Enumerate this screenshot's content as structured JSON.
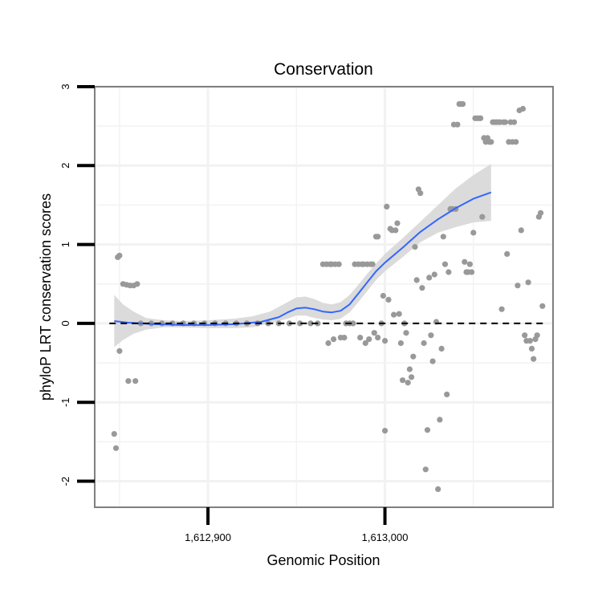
{
  "chart_data": {
    "type": "scatter",
    "title": "Conservation",
    "xlabel": "Genomic Position",
    "ylabel": "phyloP LRT conservation scores",
    "xlim": [
      1612836,
      1613095
    ],
    "ylim": [
      -2.33,
      3.0
    ],
    "x_ticks": [
      {
        "value": 1612900,
        "label": "1,612,900"
      },
      {
        "value": 1613000,
        "label": "1,613,000"
      }
    ],
    "y_ticks": [
      {
        "value": -2,
        "label": "-2"
      },
      {
        "value": -1,
        "label": "-1"
      },
      {
        "value": 0,
        "label": "0"
      },
      {
        "value": 1,
        "label": "1"
      },
      {
        "value": 2,
        "label": "2"
      },
      {
        "value": 3,
        "label": "3"
      }
    ],
    "x_minor_grid": [
      1612850,
      1612950,
      1613050
    ],
    "y_minor_grid": [
      -1.5,
      -0.5,
      0.5,
      1.5,
      2.5
    ],
    "reference_line": {
      "y": 0,
      "style": "dashed"
    },
    "colors": {
      "points": "#999999",
      "smooth": "#3366FF",
      "ribbon": "#D9D9D9",
      "frame": "#7F7F7F",
      "grid": "#F2F2F2"
    },
    "series": [
      {
        "name": "phyloP scores",
        "type": "scatter",
        "points": [
          [
            1612847,
            -1.4
          ],
          [
            1612848,
            -1.58
          ],
          [
            1612849,
            0.84
          ],
          [
            1612850,
            0.86
          ],
          [
            1612850,
            -0.35
          ],
          [
            1612852,
            0.5
          ],
          [
            1612854,
            0.49
          ],
          [
            1612855,
            -0.73
          ],
          [
            1612856,
            0.48
          ],
          [
            1612858,
            0.48
          ],
          [
            1612859,
            -0.73
          ],
          [
            1612860,
            0.5
          ],
          [
            1612862,
            0
          ],
          [
            1612868,
            0
          ],
          [
            1612874,
            0
          ],
          [
            1612880,
            0
          ],
          [
            1612886,
            0
          ],
          [
            1612892,
            0
          ],
          [
            1612898,
            0
          ],
          [
            1612904,
            0
          ],
          [
            1612910,
            0
          ],
          [
            1612916,
            0
          ],
          [
            1612922,
            0
          ],
          [
            1612928,
            0
          ],
          [
            1612934,
            0
          ],
          [
            1612940,
            0
          ],
          [
            1612946,
            0
          ],
          [
            1612952,
            0
          ],
          [
            1612958,
            0
          ],
          [
            1612962,
            0
          ],
          [
            1612965,
            0.75
          ],
          [
            1612967,
            0.75
          ],
          [
            1612968,
            -0.25
          ],
          [
            1612969,
            0.75
          ],
          [
            1612970,
            0.75
          ],
          [
            1612971,
            -0.2
          ],
          [
            1612972,
            0.75
          ],
          [
            1612974,
            0.75
          ],
          [
            1612975,
            -0.18
          ],
          [
            1612977,
            -0.18
          ],
          [
            1612978,
            0
          ],
          [
            1612980,
            0
          ],
          [
            1612982,
            0
          ],
          [
            1612983,
            0.75
          ],
          [
            1612985,
            0.75
          ],
          [
            1612986,
            -0.18
          ],
          [
            1612987,
            0.75
          ],
          [
            1612988,
            0.75
          ],
          [
            1612989,
            -0.25
          ],
          [
            1612990,
            0.75
          ],
          [
            1612991,
            -0.2
          ],
          [
            1612992,
            0.75
          ],
          [
            1612993,
            0.75
          ],
          [
            1612994,
            -0.12
          ],
          [
            1612995,
            1.1
          ],
          [
            1612996,
            1.1
          ],
          [
            1612996,
            -0.18
          ],
          [
            1612998,
            0
          ],
          [
            1612999,
            0.35
          ],
          [
            1613000,
            -0.22
          ],
          [
            1613000,
            -1.36
          ],
          [
            1613001,
            1.48
          ],
          [
            1613002,
            0.3
          ],
          [
            1613003,
            1.2
          ],
          [
            1613004,
            1.18
          ],
          [
            1613005,
            0.11
          ],
          [
            1613006,
            1.18
          ],
          [
            1613007,
            1.27
          ],
          [
            1613008,
            0.12
          ],
          [
            1613009,
            -0.25
          ],
          [
            1613010,
            -0.72
          ],
          [
            1613011,
            0
          ],
          [
            1613012,
            -0.12
          ],
          [
            1613013,
            -0.75
          ],
          [
            1613014,
            -0.58
          ],
          [
            1613015,
            -0.68
          ],
          [
            1613016,
            -0.42
          ],
          [
            1613017,
            0.97
          ],
          [
            1613018,
            0.55
          ],
          [
            1613019,
            1.7
          ],
          [
            1613020,
            1.65
          ],
          [
            1613021,
            0.45
          ],
          [
            1613022,
            -0.25
          ],
          [
            1613023,
            -1.85
          ],
          [
            1613024,
            -1.35
          ],
          [
            1613025,
            0.58
          ],
          [
            1613026,
            -0.15
          ],
          [
            1613027,
            -0.48
          ],
          [
            1613028,
            0.62
          ],
          [
            1613029,
            0.02
          ],
          [
            1613030,
            -2.1
          ],
          [
            1613031,
            -1.22
          ],
          [
            1613032,
            -0.32
          ],
          [
            1613033,
            1.1
          ],
          [
            1613034,
            0.75
          ],
          [
            1613035,
            -0.9
          ],
          [
            1613036,
            0.65
          ],
          [
            1613037,
            1.45
          ],
          [
            1613038,
            1.45
          ],
          [
            1613039,
            2.52
          ],
          [
            1613040,
            1.45
          ],
          [
            1613041,
            2.52
          ],
          [
            1613042,
            2.78
          ],
          [
            1613043,
            2.78
          ],
          [
            1613044,
            2.78
          ],
          [
            1613045,
            0.78
          ],
          [
            1613046,
            0.65
          ],
          [
            1613047,
            0.65
          ],
          [
            1613048,
            0.75
          ],
          [
            1613049,
            0.65
          ],
          [
            1613050,
            1.15
          ],
          [
            1613051,
            2.6
          ],
          [
            1613052,
            2.6
          ],
          [
            1613053,
            2.6
          ],
          [
            1613054,
            2.6
          ],
          [
            1613055,
            1.35
          ],
          [
            1613056,
            2.35
          ],
          [
            1613057,
            2.3
          ],
          [
            1613058,
            2.35
          ],
          [
            1613059,
            2.3
          ],
          [
            1613060,
            2.3
          ],
          [
            1613061,
            2.55
          ],
          [
            1613062,
            2.55
          ],
          [
            1613063,
            2.55
          ],
          [
            1613064,
            2.55
          ],
          [
            1613065,
            2.55
          ],
          [
            1613066,
            0.18
          ],
          [
            1613067,
            2.55
          ],
          [
            1613068,
            2.55
          ],
          [
            1613069,
            0.88
          ],
          [
            1613070,
            2.3
          ],
          [
            1613071,
            2.55
          ],
          [
            1613072,
            2.3
          ],
          [
            1613073,
            2.55
          ],
          [
            1613074,
            2.3
          ],
          [
            1613075,
            0.48
          ],
          [
            1613076,
            2.7
          ],
          [
            1613077,
            1.18
          ],
          [
            1613078,
            2.72
          ],
          [
            1613079,
            -0.15
          ],
          [
            1613080,
            -0.22
          ],
          [
            1613081,
            0.52
          ],
          [
            1613082,
            -0.22
          ],
          [
            1613083,
            -0.32
          ],
          [
            1613084,
            -0.45
          ],
          [
            1613085,
            -0.2
          ],
          [
            1613086,
            -0.15
          ],
          [
            1613087,
            1.35
          ],
          [
            1613088,
            1.4
          ],
          [
            1613089,
            0.22
          ]
        ]
      },
      {
        "name": "smoothed trend",
        "type": "line",
        "points": [
          [
            1612847,
            0.03
          ],
          [
            1612855,
            0.01
          ],
          [
            1612870,
            -0.01
          ],
          [
            1612885,
            -0.02
          ],
          [
            1612900,
            -0.02
          ],
          [
            1612915,
            -0.01
          ],
          [
            1612930,
            0.02
          ],
          [
            1612940,
            0.08
          ],
          [
            1612945,
            0.14
          ],
          [
            1612950,
            0.19
          ],
          [
            1612955,
            0.2
          ],
          [
            1612960,
            0.18
          ],
          [
            1612965,
            0.15
          ],
          [
            1612970,
            0.14
          ],
          [
            1612975,
            0.16
          ],
          [
            1612980,
            0.24
          ],
          [
            1612985,
            0.38
          ],
          [
            1612990,
            0.52
          ],
          [
            1612995,
            0.66
          ],
          [
            1613000,
            0.77
          ],
          [
            1613010,
            0.96
          ],
          [
            1613020,
            1.16
          ],
          [
            1613030,
            1.32
          ],
          [
            1613040,
            1.46
          ],
          [
            1613050,
            1.58
          ],
          [
            1613060,
            1.66
          ]
        ]
      },
      {
        "name": "confidence band",
        "type": "area",
        "upper": [
          [
            1612847,
            0.36
          ],
          [
            1612852,
            0.24
          ],
          [
            1612858,
            0.15
          ],
          [
            1612865,
            0.07
          ],
          [
            1612875,
            0.04
          ],
          [
            1612885,
            0.03
          ],
          [
            1612900,
            0.04
          ],
          [
            1612915,
            0.06
          ],
          [
            1612925,
            0.09
          ],
          [
            1612935,
            0.15
          ],
          [
            1612945,
            0.27
          ],
          [
            1612950,
            0.33
          ],
          [
            1612955,
            0.34
          ],
          [
            1612960,
            0.31
          ],
          [
            1612965,
            0.26
          ],
          [
            1612970,
            0.24
          ],
          [
            1612975,
            0.27
          ],
          [
            1612980,
            0.36
          ],
          [
            1612985,
            0.49
          ],
          [
            1612990,
            0.63
          ],
          [
            1612995,
            0.76
          ],
          [
            1613000,
            0.88
          ],
          [
            1613010,
            1.08
          ],
          [
            1613020,
            1.29
          ],
          [
            1613030,
            1.5
          ],
          [
            1613040,
            1.71
          ],
          [
            1613050,
            1.88
          ],
          [
            1613060,
            2.02
          ]
        ],
        "lower": [
          [
            1612847,
            -0.3
          ],
          [
            1612852,
            -0.21
          ],
          [
            1612858,
            -0.13
          ],
          [
            1612865,
            -0.08
          ],
          [
            1612875,
            -0.05
          ],
          [
            1612885,
            -0.05
          ],
          [
            1612900,
            -0.06
          ],
          [
            1612915,
            -0.06
          ],
          [
            1612925,
            -0.05
          ],
          [
            1612935,
            0.0
          ],
          [
            1612945,
            0.06
          ],
          [
            1612950,
            0.1
          ],
          [
            1612955,
            0.1
          ],
          [
            1612960,
            0.07
          ],
          [
            1612965,
            0.05
          ],
          [
            1612970,
            0.04
          ],
          [
            1612975,
            0.06
          ],
          [
            1612980,
            0.14
          ],
          [
            1612985,
            0.27
          ],
          [
            1612990,
            0.41
          ],
          [
            1612995,
            0.55
          ],
          [
            1613000,
            0.66
          ],
          [
            1613010,
            0.84
          ],
          [
            1613020,
            1.03
          ],
          [
            1613030,
            1.15
          ],
          [
            1613040,
            1.22
          ],
          [
            1613050,
            1.28
          ],
          [
            1613060,
            1.3
          ]
        ]
      }
    ]
  }
}
